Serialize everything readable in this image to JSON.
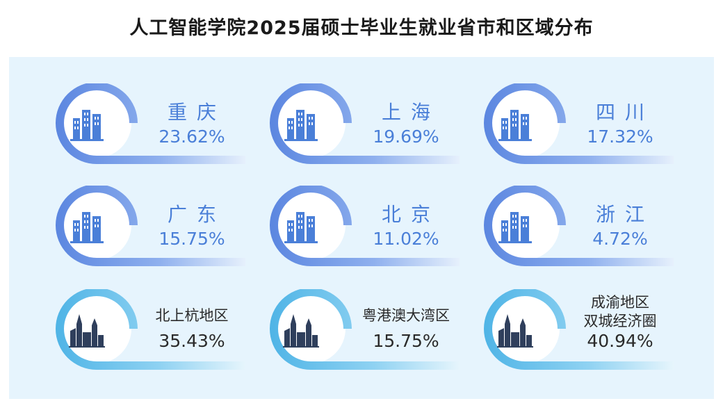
{
  "title": "人工智能学院2025届硕士毕业生就业省市和区域分布",
  "colors": {
    "panel": "#e6f4fd",
    "province_accent": "#5b86e0",
    "region_accent": "#4fb4e6"
  },
  "provinces": [
    {
      "name": "重庆",
      "percent": "23.62%",
      "icon": "building-icon"
    },
    {
      "name": "上海",
      "percent": "19.69%",
      "icon": "building-icon"
    },
    {
      "name": "四川",
      "percent": "17.32%",
      "icon": "building-icon"
    },
    {
      "name": "广东",
      "percent": "15.75%",
      "icon": "building-icon"
    },
    {
      "name": "北京",
      "percent": "11.02%",
      "icon": "building-icon"
    },
    {
      "name": "浙江",
      "percent": "4.72%",
      "icon": "building-icon"
    }
  ],
  "regions": [
    {
      "name": "北上杭地区",
      "percent": "35.43%",
      "icon": "city-skyline-icon"
    },
    {
      "name": "粤港澳大湾区",
      "percent": "15.75%",
      "icon": "city-skyline-icon"
    },
    {
      "name_line1": "成渝地区",
      "name_line2": "双城经济圈",
      "percent": "40.94%",
      "icon": "city-skyline-icon"
    }
  ]
}
